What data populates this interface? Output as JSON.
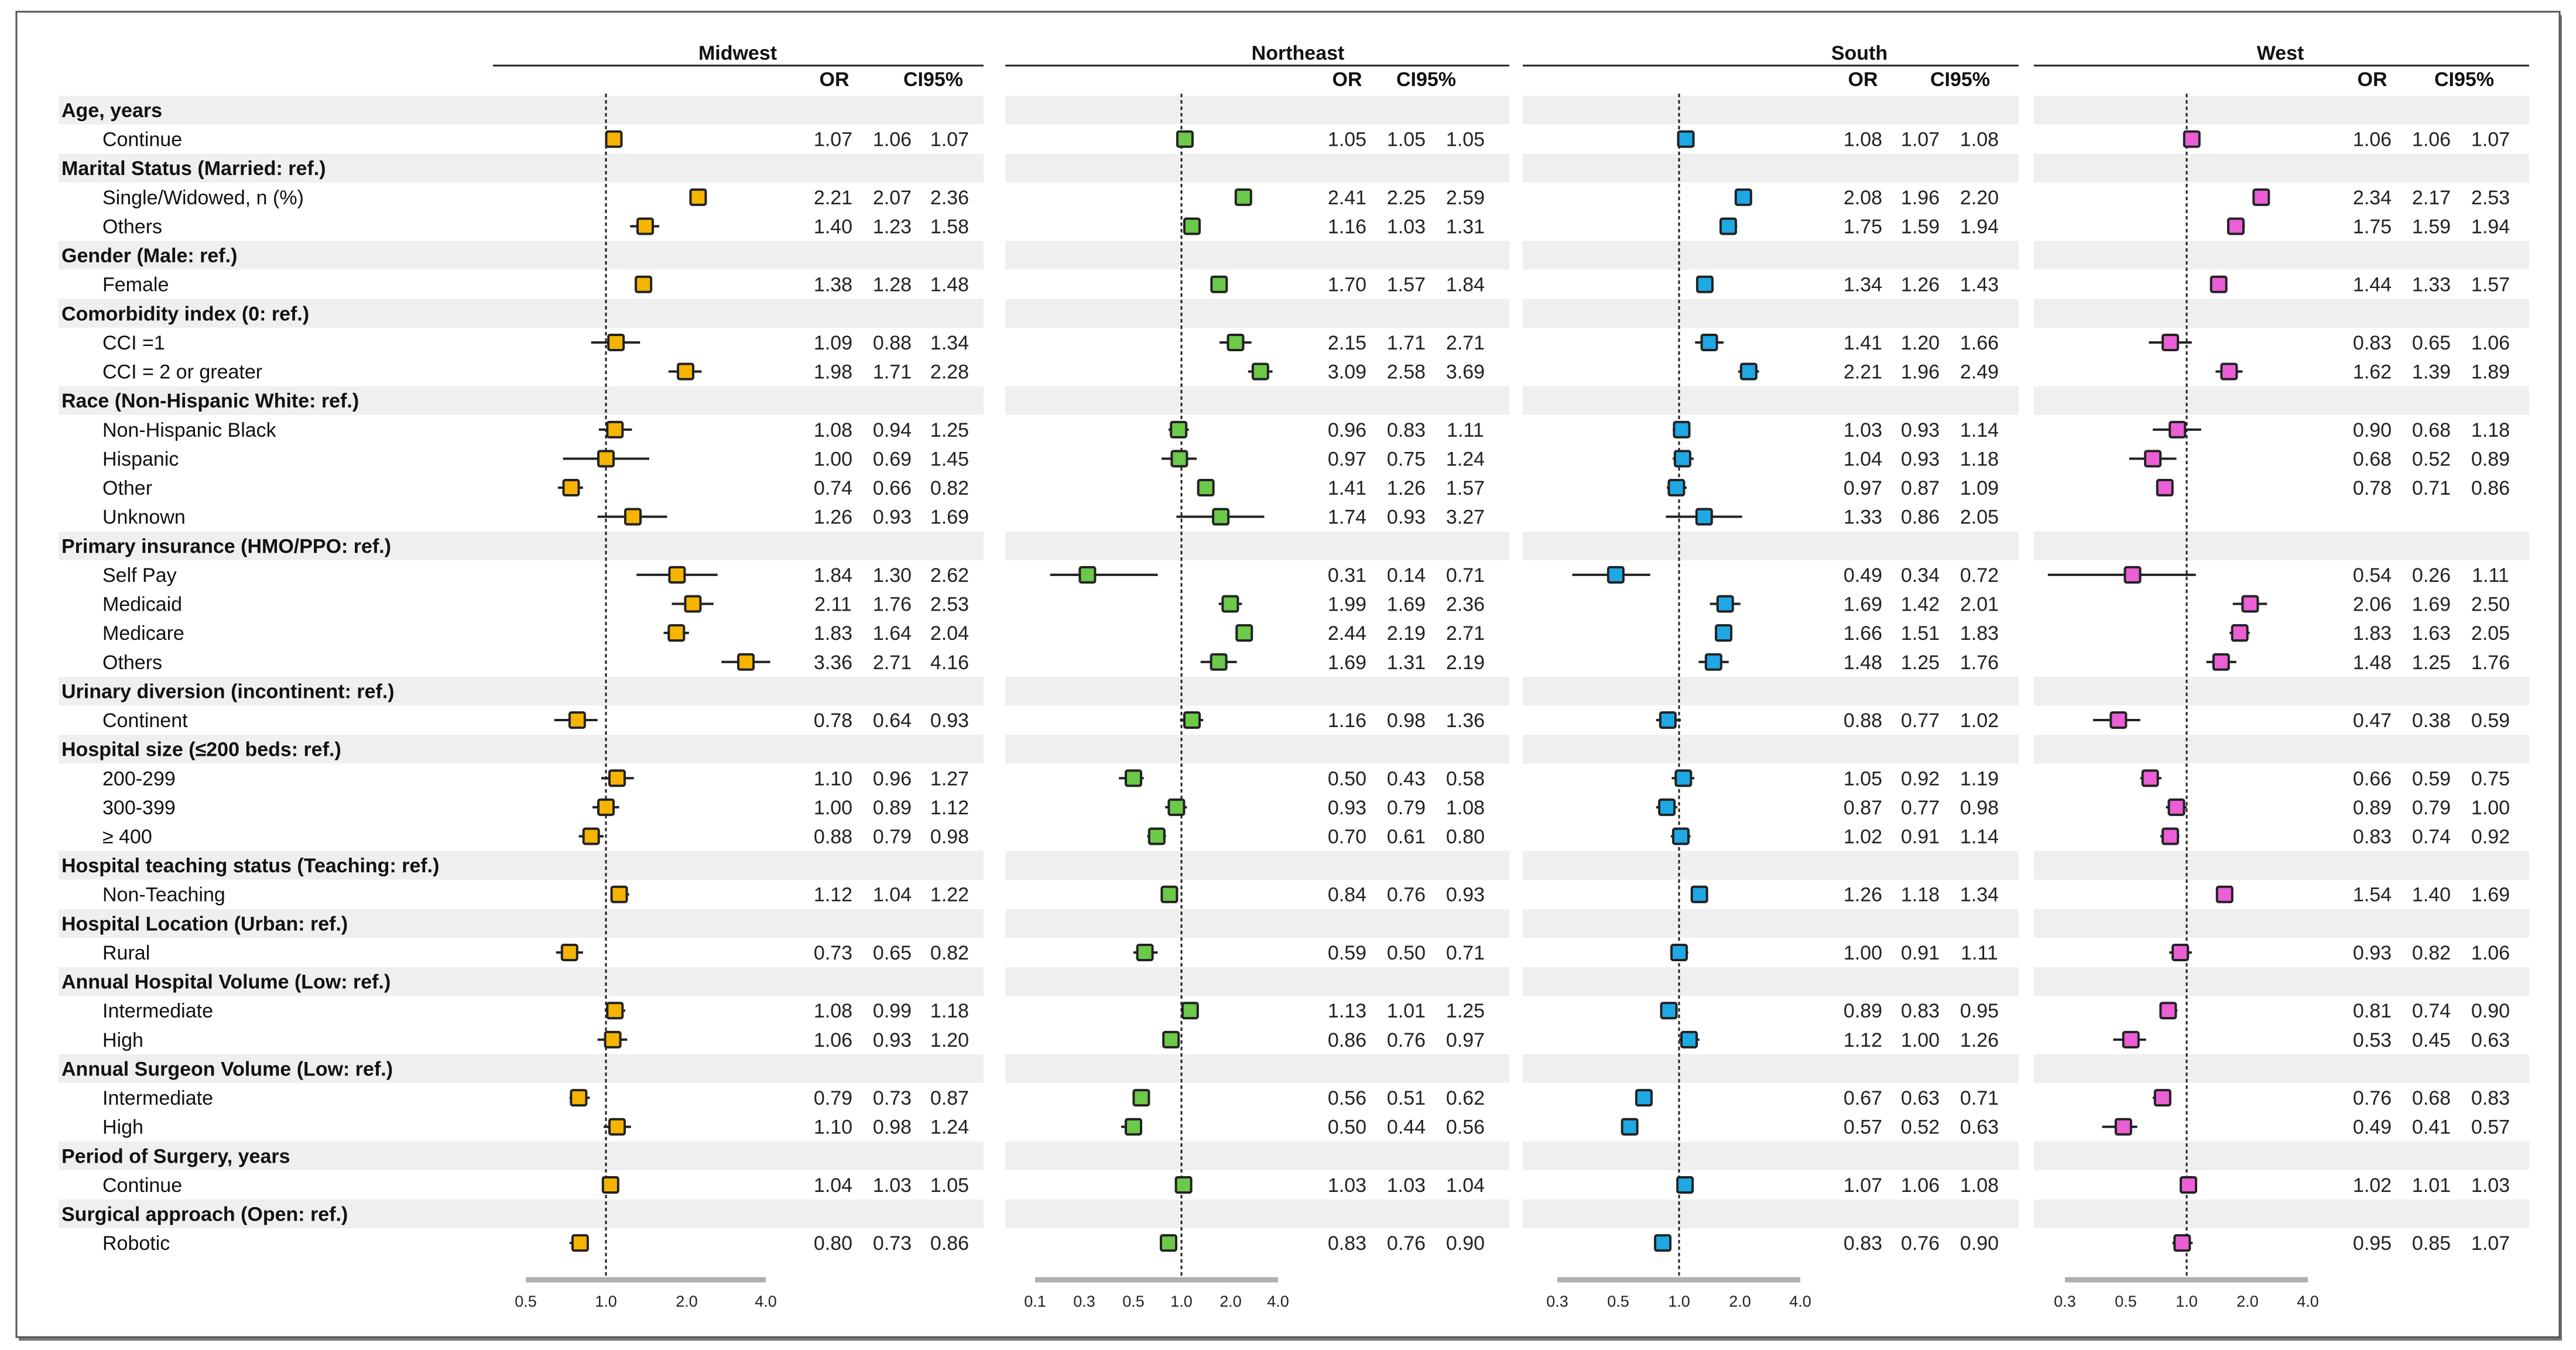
{
  "chart_data": {
    "type": "forest",
    "xscale": "log",
    "reference_line": 1.0,
    "column_headers": {
      "or": "OR",
      "ci": "CI95%"
    },
    "panels": [
      {
        "name": "Midwest",
        "color": "#f5b400",
        "ticks": [
          0.5,
          1.0,
          2.0,
          4.0
        ],
        "tick_labels": [
          "0.5",
          "1.0",
          "2.0",
          "4.0"
        ]
      },
      {
        "name": "Northeast",
        "color": "#6cc94a",
        "ticks": [
          0.1,
          0.3,
          0.5,
          1.0,
          2.0,
          4.0
        ],
        "tick_labels": [
          "0.1",
          "0.3",
          "0.5",
          "1.0",
          "2.0",
          "4.0"
        ]
      },
      {
        "name": "South",
        "color": "#1ea8e4",
        "ticks": [
          0.3,
          0.5,
          1.0,
          2.0,
          4.0
        ],
        "tick_labels": [
          "0.3",
          "0.5",
          "1.0",
          "2.0",
          "4.0"
        ]
      },
      {
        "name": "West",
        "color": "#ea5fd6",
        "ticks": [
          0.3,
          0.5,
          1.0,
          2.0,
          4.0
        ],
        "tick_labels": [
          "0.3",
          "0.5",
          "1.0",
          "2.0",
          "4.0"
        ]
      }
    ],
    "rows": [
      {
        "label": "Age, years",
        "header": true
      },
      {
        "label": "Continue",
        "values": [
          [
            1.07,
            1.06,
            1.07
          ],
          [
            1.05,
            1.05,
            1.05
          ],
          [
            1.08,
            1.07,
            1.08
          ],
          [
            1.06,
            1.06,
            1.07
          ]
        ]
      },
      {
        "label": "Marital Status (Married: ref.)",
        "header": true
      },
      {
        "label": "Single/Widowed, n (%)",
        "values": [
          [
            2.21,
            2.07,
            2.36
          ],
          [
            2.41,
            2.25,
            2.59
          ],
          [
            2.08,
            1.96,
            2.2
          ],
          [
            2.34,
            2.17,
            2.53
          ]
        ]
      },
      {
        "label": "Others",
        "values": [
          [
            1.4,
            1.23,
            1.58
          ],
          [
            1.16,
            1.03,
            1.31
          ],
          [
            1.75,
            1.59,
            1.94
          ],
          [
            1.75,
            1.59,
            1.94
          ]
        ]
      },
      {
        "label": "Gender (Male: ref.)",
        "header": true
      },
      {
        "label": "Female",
        "values": [
          [
            1.38,
            1.28,
            1.48
          ],
          [
            1.7,
            1.57,
            1.84
          ],
          [
            1.34,
            1.26,
            1.43
          ],
          [
            1.44,
            1.33,
            1.57
          ]
        ]
      },
      {
        "label": "Comorbidity index (0: ref.)",
        "header": true
      },
      {
        "label": "CCI =1",
        "values": [
          [
            1.09,
            0.88,
            1.34
          ],
          [
            2.15,
            1.71,
            2.71
          ],
          [
            1.41,
            1.2,
            1.66
          ],
          [
            0.83,
            0.65,
            1.06
          ]
        ]
      },
      {
        "label": "CCI = 2 or greater",
        "values": [
          [
            1.98,
            1.71,
            2.28
          ],
          [
            3.09,
            2.58,
            3.69
          ],
          [
            2.21,
            1.96,
            2.49
          ],
          [
            1.62,
            1.39,
            1.89
          ]
        ]
      },
      {
        "label": "Race (Non-Hispanic White: ref.)",
        "header": true
      },
      {
        "label": "Non-Hispanic Black",
        "values": [
          [
            1.08,
            0.94,
            1.25
          ],
          [
            0.96,
            0.83,
            1.11
          ],
          [
            1.03,
            0.93,
            1.14
          ],
          [
            0.9,
            0.68,
            1.18
          ]
        ]
      },
      {
        "label": "Hispanic",
        "values": [
          [
            1.0,
            0.69,
            1.45
          ],
          [
            0.97,
            0.75,
            1.24
          ],
          [
            1.04,
            0.93,
            1.18
          ],
          [
            0.68,
            0.52,
            0.89
          ]
        ]
      },
      {
        "label": "Other",
        "values": [
          [
            0.74,
            0.66,
            0.82
          ],
          [
            1.41,
            1.26,
            1.57
          ],
          [
            0.97,
            0.87,
            1.09
          ],
          [
            0.78,
            0.71,
            0.86
          ]
        ]
      },
      {
        "label": "Unknown",
        "values": [
          [
            1.26,
            0.93,
            1.69
          ],
          [
            1.74,
            0.93,
            3.27
          ],
          [
            1.33,
            0.86,
            2.05
          ],
          null
        ]
      },
      {
        "label": "Primary insurance (HMO/PPO: ref.)",
        "header": true
      },
      {
        "label": "Self Pay",
        "values": [
          [
            1.84,
            1.3,
            2.62
          ],
          [
            0.31,
            0.14,
            0.71
          ],
          [
            0.49,
            0.34,
            0.72
          ],
          [
            0.54,
            0.26,
            1.11
          ]
        ]
      },
      {
        "label": "Medicaid",
        "values": [
          [
            2.11,
            1.76,
            2.53
          ],
          [
            1.99,
            1.69,
            2.36
          ],
          [
            1.69,
            1.42,
            2.01
          ],
          [
            2.06,
            1.69,
            2.5
          ]
        ]
      },
      {
        "label": "Medicare",
        "values": [
          [
            1.83,
            1.64,
            2.04
          ],
          [
            2.44,
            2.19,
            2.71
          ],
          [
            1.66,
            1.51,
            1.83
          ],
          [
            1.83,
            1.63,
            2.05
          ]
        ]
      },
      {
        "label": "Others",
        "values": [
          [
            3.36,
            2.71,
            4.16
          ],
          [
            1.69,
            1.31,
            2.19
          ],
          [
            1.48,
            1.25,
            1.76
          ],
          [
            1.48,
            1.25,
            1.76
          ]
        ]
      },
      {
        "label": "Urinary diversion (incontinent: ref.)",
        "header": true
      },
      {
        "label": "Continent",
        "values": [
          [
            0.78,
            0.64,
            0.93
          ],
          [
            1.16,
            0.98,
            1.36
          ],
          [
            0.88,
            0.77,
            1.02
          ],
          [
            0.47,
            0.38,
            0.59
          ]
        ]
      },
      {
        "label": "Hospital size (≤200 beds: ref.)",
        "header": true
      },
      {
        "label": "200-299",
        "values": [
          [
            1.1,
            0.96,
            1.27
          ],
          [
            0.5,
            0.43,
            0.58
          ],
          [
            1.05,
            0.92,
            1.19
          ],
          [
            0.66,
            0.59,
            0.75
          ]
        ]
      },
      {
        "label": "300-399",
        "values": [
          [
            1.0,
            0.89,
            1.12
          ],
          [
            0.93,
            0.79,
            1.08
          ],
          [
            0.87,
            0.77,
            0.98
          ],
          [
            0.89,
            0.79,
            1.0
          ]
        ]
      },
      {
        "label": "≥ 400",
        "values": [
          [
            0.88,
            0.79,
            0.98
          ],
          [
            0.7,
            0.61,
            0.8
          ],
          [
            1.02,
            0.91,
            1.14
          ],
          [
            0.83,
            0.74,
            0.92
          ]
        ]
      },
      {
        "label": "Hospital teaching status (Teaching: ref.)",
        "header": true
      },
      {
        "label": "Non-Teaching",
        "values": [
          [
            1.12,
            1.04,
            1.22
          ],
          [
            0.84,
            0.76,
            0.93
          ],
          [
            1.26,
            1.18,
            1.34
          ],
          [
            1.54,
            1.4,
            1.69
          ]
        ]
      },
      {
        "label": "Hospital Location (Urban: ref.)",
        "header": true
      },
      {
        "label": "Rural",
        "values": [
          [
            0.73,
            0.65,
            0.82
          ],
          [
            0.59,
            0.5,
            0.71
          ],
          [
            1.0,
            0.91,
            1.11
          ],
          [
            0.93,
            0.82,
            1.06
          ]
        ]
      },
      {
        "label": "Annual Hospital Volume (Low: ref.)",
        "header": true
      },
      {
        "label": "Intermediate",
        "values": [
          [
            1.08,
            0.99,
            1.18
          ],
          [
            1.13,
            1.01,
            1.25
          ],
          [
            0.89,
            0.83,
            0.95
          ],
          [
            0.81,
            0.74,
            0.9
          ]
        ]
      },
      {
        "label": "High",
        "values": [
          [
            1.06,
            0.93,
            1.2
          ],
          [
            0.86,
            0.76,
            0.97
          ],
          [
            1.12,
            1.0,
            1.26
          ],
          [
            0.53,
            0.45,
            0.63
          ]
        ]
      },
      {
        "label": "Annual Surgeon Volume (Low: ref.)",
        "header": true
      },
      {
        "label": "Intermediate",
        "values": [
          [
            0.79,
            0.73,
            0.87
          ],
          [
            0.56,
            0.51,
            0.62
          ],
          [
            0.67,
            0.63,
            0.71
          ],
          [
            0.76,
            0.68,
            0.83
          ]
        ]
      },
      {
        "label": "High",
        "values": [
          [
            1.1,
            0.98,
            1.24
          ],
          [
            0.5,
            0.44,
            0.56
          ],
          [
            0.57,
            0.52,
            0.63
          ],
          [
            0.49,
            0.41,
            0.57
          ]
        ]
      },
      {
        "label": "Period of Surgery, years",
        "header": true
      },
      {
        "label": "Continue",
        "values": [
          [
            1.04,
            1.03,
            1.05
          ],
          [
            1.03,
            1.03,
            1.04
          ],
          [
            1.07,
            1.06,
            1.08
          ],
          [
            1.02,
            1.01,
            1.03
          ]
        ]
      },
      {
        "label": "Surgical approach (Open: ref.)",
        "header": true
      },
      {
        "label": "Robotic",
        "values": [
          [
            0.8,
            0.73,
            0.86
          ],
          [
            0.83,
            0.76,
            0.9
          ],
          [
            0.83,
            0.76,
            0.9
          ],
          [
            0.95,
            0.85,
            1.07
          ]
        ]
      }
    ]
  }
}
